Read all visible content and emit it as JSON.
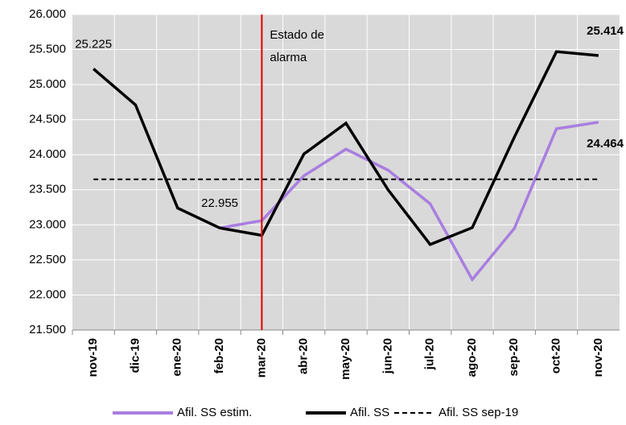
{
  "chart_data": {
    "type": "line",
    "categories": [
      "nov-19",
      "dic-19",
      "ene-20",
      "feb-20",
      "mar-20",
      "abr-20",
      "may-20",
      "jun-20",
      "jul-20",
      "ago-20",
      "sep-20",
      "oct-20",
      "nov-20"
    ],
    "series": [
      {
        "name": "Afil. SS estim.",
        "color": "#a97ee0",
        "dash": false,
        "values": [
          null,
          null,
          null,
          22955,
          23060,
          23700,
          24080,
          23780,
          23300,
          22220,
          22950,
          24370,
          24464
        ],
        "value_labels": [
          null,
          null,
          null,
          null,
          null,
          null,
          null,
          null,
          null,
          null,
          null,
          null,
          "24.464"
        ]
      },
      {
        "name": "Afil. SS",
        "color": "#000000",
        "dash": false,
        "values": [
          25225,
          24710,
          23240,
          22955,
          22850,
          24010,
          24450,
          23500,
          22720,
          22960,
          24250,
          25470,
          25414
        ],
        "value_labels": [
          "25.225",
          null,
          null,
          "22.955",
          null,
          null,
          null,
          null,
          null,
          null,
          null,
          null,
          "25.414"
        ]
      },
      {
        "name": "Afil. SS sep-19",
        "color": "#000000",
        "dash": true,
        "values": [
          23650,
          23650,
          23650,
          23650,
          23650,
          23650,
          23650,
          23650,
          23650,
          23650,
          23650,
          23650,
          23650
        ]
      }
    ],
    "ylim": [
      21500,
      26000
    ],
    "yticks": [
      {
        "value": 21500,
        "label": "21.500"
      },
      {
        "value": 22000,
        "label": "22.000"
      },
      {
        "value": 22500,
        "label": "22.500"
      },
      {
        "value": 23000,
        "label": "23.000"
      },
      {
        "value": 23500,
        "label": "23.500"
      },
      {
        "value": 24000,
        "label": "24.000"
      },
      {
        "value": 24500,
        "label": "24.500"
      },
      {
        "value": 25000,
        "label": "25.000"
      },
      {
        "value": 25500,
        "label": "25.500"
      },
      {
        "value": 26000,
        "label": "26.000"
      }
    ],
    "grid": true,
    "annotation": {
      "category_index": 4,
      "color": "#e00000",
      "lines": [
        "Estado de",
        "alarma"
      ]
    },
    "legend": "bottom"
  }
}
